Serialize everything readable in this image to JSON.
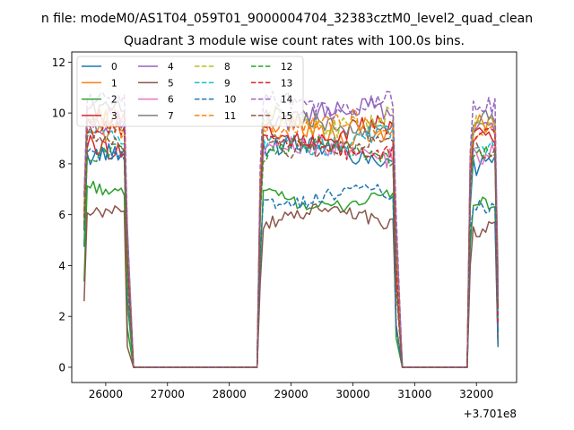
{
  "figure": {
    "suptitle": "n file: modeM0/AS1T04_059T01_9000004704_32383cztM0_level2_quad_clean",
    "offset_label": "+3.701e8"
  },
  "chart_data": {
    "type": "line",
    "title": "Quadrant 3 module wise count rates with 100.0s bins.",
    "xlabel": "",
    "ylabel": "",
    "x_offset": 370100000,
    "xlim": [
      25450,
      32650
    ],
    "ylim": [
      -0.6,
      12.4
    ],
    "x_ticks": [
      26000,
      27000,
      28000,
      29000,
      30000,
      31000,
      32000
    ],
    "x_tick_labels": [
      "26000",
      "27000",
      "28000",
      "29000",
      "30000",
      "31000",
      "32000"
    ],
    "y_ticks": [
      0,
      2,
      4,
      6,
      8,
      10,
      12
    ],
    "y_tick_labels": [
      "0",
      "2",
      "4",
      "6",
      "8",
      "10",
      "12"
    ],
    "grid": false,
    "legend_position": "upper-left",
    "legend_columns": 4,
    "segments": [
      {
        "start": 25650,
        "end": 26350,
        "edge": [
          3.5,
          0
        ]
      },
      {
        "start": 28500,
        "end": 30700,
        "edge": [
          2.5,
          0
        ]
      },
      {
        "start": 31900,
        "end": 32350,
        "edge": [
          1.5,
          1.5
        ]
      }
    ],
    "series": [
      {
        "name": "0",
        "color": "#1f77b4",
        "dash": "solid",
        "levels": [
          8.2,
          8.5,
          7.8
        ],
        "amp": 0.35
      },
      {
        "name": "1",
        "color": "#ff7f0e",
        "dash": "solid",
        "levels": [
          9.5,
          9.3,
          9.3
        ],
        "amp": 0.4
      },
      {
        "name": "2",
        "color": "#2ca02c",
        "dash": "solid",
        "levels": [
          6.9,
          6.6,
          6.3
        ],
        "amp": 0.25
      },
      {
        "name": "3",
        "color": "#d62728",
        "dash": "solid",
        "levels": [
          8.8,
          9.2,
          9.2
        ],
        "amp": 0.4
      },
      {
        "name": "4",
        "color": "#9467bd",
        "dash": "solid",
        "levels": [
          9.8,
          10.0,
          9.8
        ],
        "amp": 0.4
      },
      {
        "name": "5",
        "color": "#8c564b",
        "dash": "solid",
        "levels": [
          6.2,
          5.9,
          5.6
        ],
        "amp": 0.3
      },
      {
        "name": "6",
        "color": "#e377c2",
        "dash": "solid",
        "levels": [
          9.7,
          8.5,
          8.3
        ],
        "amp": 0.4
      },
      {
        "name": "7",
        "color": "#7f7f7f",
        "dash": "solid",
        "levels": [
          9.9,
          9.6,
          9.5
        ],
        "amp": 0.35
      },
      {
        "name": "8",
        "color": "#bcbd22",
        "dash": "dashed",
        "levels": [
          9.6,
          9.7,
          9.3
        ],
        "amp": 0.4
      },
      {
        "name": "9",
        "color": "#17becf",
        "dash": "dashed",
        "levels": [
          9.3,
          8.9,
          8.8
        ],
        "amp": 0.35
      },
      {
        "name": "10",
        "color": "#1f77b4",
        "dash": "dashed",
        "levels": [
          8.6,
          6.7,
          6.6
        ],
        "amp": 0.25
      },
      {
        "name": "11",
        "color": "#ff7f0e",
        "dash": "dashed",
        "levels": [
          9.4,
          9.5,
          9.4
        ],
        "amp": 0.4
      },
      {
        "name": "12",
        "color": "#2ca02c",
        "dash": "dashed",
        "levels": [
          8.4,
          8.5,
          8.4
        ],
        "amp": 0.3
      },
      {
        "name": "13",
        "color": "#d62728",
        "dash": "dashed",
        "levels": [
          9.1,
          8.7,
          8.9
        ],
        "amp": 0.35
      },
      {
        "name": "14",
        "color": "#9467bd",
        "dash": "dashed",
        "levels": [
          10.3,
          10.4,
          10.0
        ],
        "amp": 0.4
      },
      {
        "name": "15",
        "color": "#8c564b",
        "dash": "dashed",
        "levels": [
          9.0,
          8.7,
          8.5
        ],
        "amp": 0.35
      }
    ]
  }
}
